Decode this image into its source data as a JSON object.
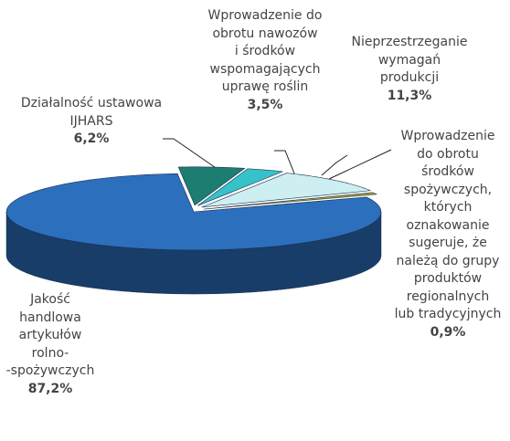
{
  "chart_data": {
    "type": "pie3d",
    "categories": [
      "Działalność ustawowa\nIJHARS",
      "Wprowadzenie do\nobrotu nawozów\ni środków\nwspomagających\nuprawę roślin",
      "Nieprzestrzeganie\nwymagań\nprodukcji",
      "Wprowadzenie\ndo obrotu\nśrodków\nspożywczych,\nktórych\noznakowanie\nsugeruje, że\nnależą do grupy\nproduktów\nregionalnych\nlub tradycyjnych",
      "Jakość\nhandlowa\nartykułów\nrolno-\n-spożywczych"
    ],
    "values": [
      6.2,
      3.5,
      11.3,
      0.9,
      87.2
    ],
    "value_labels": [
      "6,2%",
      "3,5%",
      "11,3%",
      "0,9%",
      "87,2%"
    ],
    "colors": [
      "#1d7d70",
      "#35c2c8",
      "#cdeff1",
      "#a9a82c",
      "#2c6fbd"
    ]
  }
}
